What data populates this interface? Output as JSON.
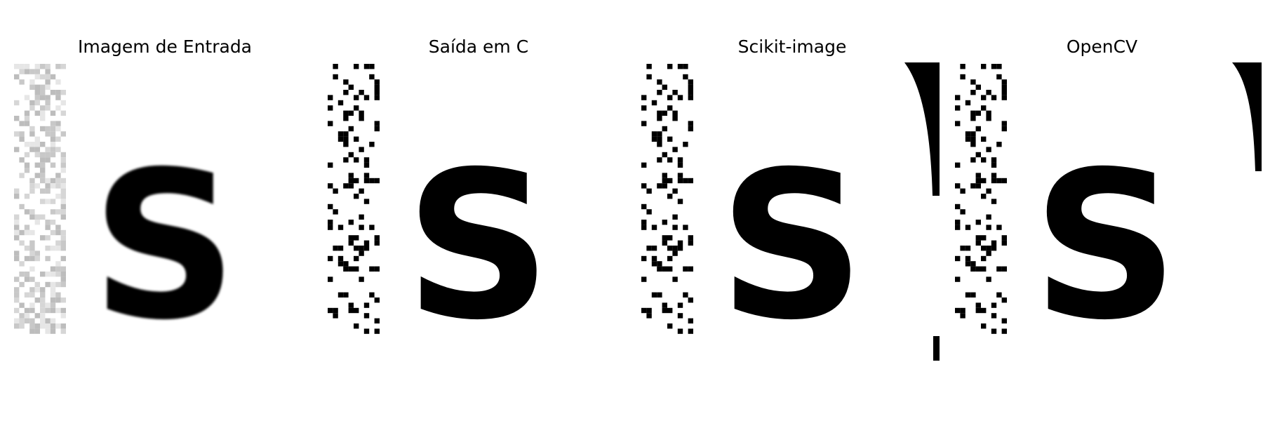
{
  "panels": [
    {
      "title": "Imagem de Entrada",
      "style": "grayscale",
      "letter": "S",
      "ink": "#000000",
      "noise_color": "#c4c4c4"
    },
    {
      "title": "Saída em C",
      "style": "binary",
      "letter": "S",
      "ink": "#000000",
      "noise_color": "#000000"
    },
    {
      "title": "Scikit-image",
      "style": "binary",
      "letter": "S",
      "ink": "#000000",
      "noise_color": "#000000"
    },
    {
      "title": "OpenCV",
      "style": "binary",
      "letter": "S",
      "ink": "#000000",
      "noise_color": "#000000"
    }
  ]
}
